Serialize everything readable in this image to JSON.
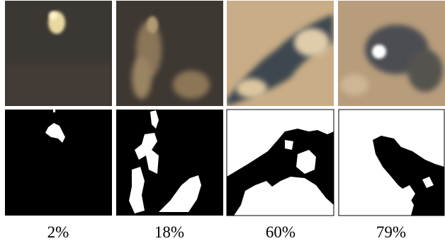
{
  "panels": [
    {
      "coverage": "2%"
    },
    {
      "coverage": "18%"
    },
    {
      "coverage": "60%"
    },
    {
      "coverage": "79%"
    }
  ]
}
